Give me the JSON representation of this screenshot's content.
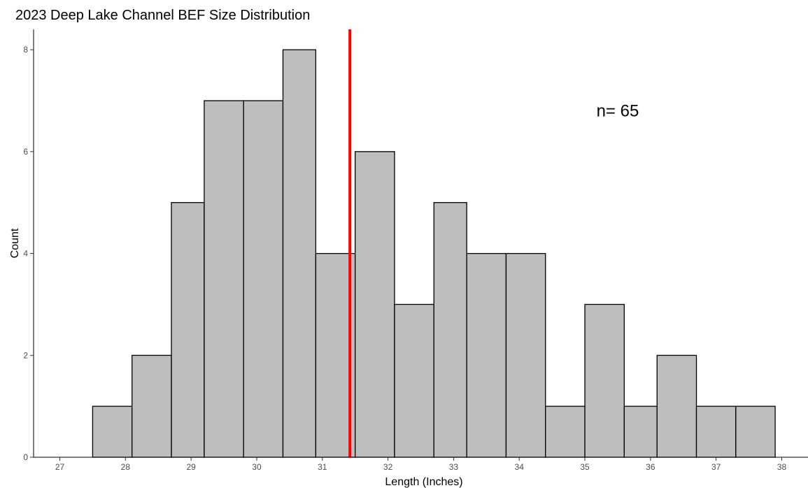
{
  "chart_data": {
    "type": "bar",
    "title": "2023 Deep Lake Channel BEF Size Distribution",
    "xlabel": "Length (Inches)",
    "ylabel": "Count",
    "xlim": [
      26.6,
      38.4
    ],
    "ylim": [
      0,
      8.4
    ],
    "x_ticks": [
      "27",
      "28",
      "29",
      "30",
      "31",
      "32",
      "33",
      "34",
      "35",
      "36",
      "37",
      "38"
    ],
    "y_ticks": [
      "0",
      "2",
      "4",
      "6",
      "8"
    ],
    "bins": [
      {
        "x0": 27.5,
        "x1": 28.1,
        "count": 1
      },
      {
        "x0": 28.1,
        "x1": 28.7,
        "count": 2
      },
      {
        "x0": 28.7,
        "x1": 29.2,
        "count": 5
      },
      {
        "x0": 29.2,
        "x1": 29.8,
        "count": 7
      },
      {
        "x0": 29.8,
        "x1": 30.4,
        "count": 7
      },
      {
        "x0": 30.4,
        "x1": 30.9,
        "count": 8
      },
      {
        "x0": 30.9,
        "x1": 31.5,
        "count": 4
      },
      {
        "x0": 31.5,
        "x1": 32.1,
        "count": 6
      },
      {
        "x0": 32.1,
        "x1": 32.7,
        "count": 3
      },
      {
        "x0": 32.7,
        "x1": 33.2,
        "count": 5
      },
      {
        "x0": 33.2,
        "x1": 33.8,
        "count": 4
      },
      {
        "x0": 33.8,
        "x1": 34.4,
        "count": 4
      },
      {
        "x0": 34.4,
        "x1": 35.0,
        "count": 1
      },
      {
        "x0": 35.0,
        "x1": 35.6,
        "count": 3
      },
      {
        "x0": 35.6,
        "x1": 36.1,
        "count": 1
      },
      {
        "x0": 36.1,
        "x1": 36.7,
        "count": 2
      },
      {
        "x0": 36.7,
        "x1": 37.3,
        "count": 1
      },
      {
        "x0": 37.3,
        "x1": 37.9,
        "count": 1
      }
    ],
    "reference_line": {
      "x": 31.42,
      "color": "#ff0000"
    },
    "annotation": {
      "text": "n= 65",
      "x": 35.5,
      "y": 6.8
    },
    "colors": {
      "bar_fill": "#bebebe",
      "bar_stroke": "#000000"
    },
    "grid": false,
    "legend": "none"
  }
}
